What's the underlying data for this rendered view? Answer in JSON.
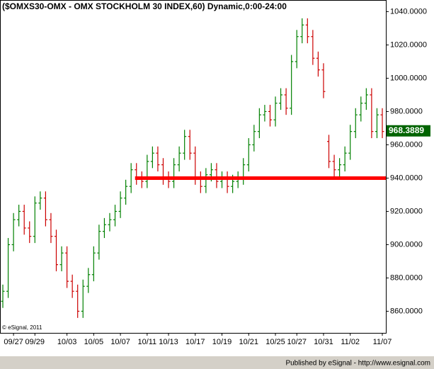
{
  "chart_data": {
    "type": "ohlc",
    "title": "($OMXS30-OMX - OMX STOCKHOLM 30 INDEX,60) Dynamic,0:00-24:00",
    "copyright": "© eSignal, 2011",
    "footer": "Published by eSignal - http://www.esignal.com",
    "categories": [
      null,
      null,
      "09/27",
      null,
      null,
      null,
      "09/29",
      null,
      null,
      null,
      null,
      null,
      "10/03",
      null,
      null,
      null,
      null,
      "10/05",
      null,
      null,
      null,
      null,
      "10/07",
      null,
      null,
      null,
      null,
      "10/11",
      null,
      null,
      null,
      "10/13",
      null,
      null,
      null,
      null,
      "10/17",
      null,
      null,
      null,
      null,
      "10/19",
      null,
      null,
      null,
      null,
      "10/21",
      null,
      null,
      null,
      null,
      "10/25",
      null,
      null,
      null,
      "10/27",
      null,
      null,
      null,
      null,
      "10/31",
      null,
      null,
      null,
      null,
      "11/02",
      null,
      null,
      null,
      null,
      null,
      "11/07"
    ],
    "open": [
      866,
      872,
      900,
      915,
      920,
      910,
      905,
      925,
      928,
      915,
      905,
      888,
      895,
      878,
      872,
      860,
      875,
      882,
      895,
      908,
      912,
      915,
      920,
      928,
      935,
      945,
      940,
      938,
      950,
      955,
      948,
      940,
      938,
      948,
      955,
      965,
      955,
      940,
      935,
      942,
      945,
      938,
      940,
      935,
      938,
      940,
      948,
      960,
      968,
      978,
      980,
      975,
      985,
      990,
      982,
      1010,
      1025,
      1032,
      1025,
      1012,
      1005,
      962,
      950,
      945,
      948,
      955,
      968,
      978,
      985,
      990,
      968,
      978
    ],
    "high": [
      876,
      904,
      919,
      924,
      924,
      914,
      929,
      932,
      932,
      919,
      909,
      899,
      899,
      882,
      876,
      879,
      886,
      899,
      912,
      916,
      919,
      924,
      932,
      939,
      949,
      949,
      944,
      954,
      959,
      959,
      952,
      944,
      952,
      959,
      969,
      969,
      959,
      944,
      946,
      949,
      949,
      944,
      944,
      942,
      944,
      952,
      964,
      972,
      982,
      984,
      984,
      989,
      994,
      994,
      1014,
      1029,
      1036,
      1036,
      1029,
      1016,
      1009,
      966,
      954,
      952,
      959,
      972,
      982,
      989,
      994,
      994,
      982,
      982
    ],
    "low": [
      862,
      868,
      896,
      911,
      906,
      901,
      901,
      921,
      911,
      901,
      884,
      884,
      874,
      868,
      856,
      856,
      871,
      878,
      891,
      904,
      908,
      911,
      916,
      924,
      931,
      936,
      934,
      934,
      946,
      944,
      936,
      934,
      934,
      944,
      951,
      951,
      936,
      931,
      931,
      938,
      934,
      934,
      931,
      931,
      934,
      936,
      944,
      956,
      964,
      974,
      971,
      971,
      981,
      978,
      978,
      1006,
      1021,
      1021,
      1008,
      1001,
      988,
      946,
      941,
      941,
      944,
      951,
      964,
      974,
      981,
      964,
      964,
      964
    ],
    "close": [
      872,
      900,
      915,
      920,
      910,
      905,
      925,
      928,
      915,
      905,
      888,
      895,
      878,
      872,
      860,
      875,
      882,
      895,
      908,
      912,
      915,
      920,
      928,
      935,
      945,
      940,
      938,
      950,
      955,
      948,
      940,
      938,
      948,
      955,
      965,
      955,
      940,
      935,
      942,
      945,
      938,
      940,
      935,
      938,
      940,
      948,
      960,
      968,
      978,
      980,
      975,
      985,
      990,
      982,
      1010,
      1025,
      1032,
      1025,
      1012,
      1005,
      992,
      950,
      945,
      948,
      955,
      968,
      978,
      985,
      990,
      968,
      978,
      968
    ],
    "up_color": "#008000",
    "down_color": "#cc0000",
    "last_price": 968.3889,
    "hline": {
      "value": 940,
      "color": "#ff0000"
    },
    "ylim": [
      847,
      1047
    ],
    "yticks": [
      {
        "value": 860,
        "label": "860.0000"
      },
      {
        "value": 880,
        "label": "880.0000"
      },
      {
        "value": 900,
        "label": "900.0000"
      },
      {
        "value": 920,
        "label": "920.0000"
      },
      {
        "value": 940,
        "label": "940.0000"
      },
      {
        "value": 960,
        "label": "960.0000"
      },
      {
        "value": 980,
        "label": "980.0000"
      },
      {
        "value": 1000,
        "label": "1000.0000"
      },
      {
        "value": 1020,
        "label": "1020.0000"
      },
      {
        "value": 1040,
        "label": "1040.0000"
      }
    ]
  }
}
